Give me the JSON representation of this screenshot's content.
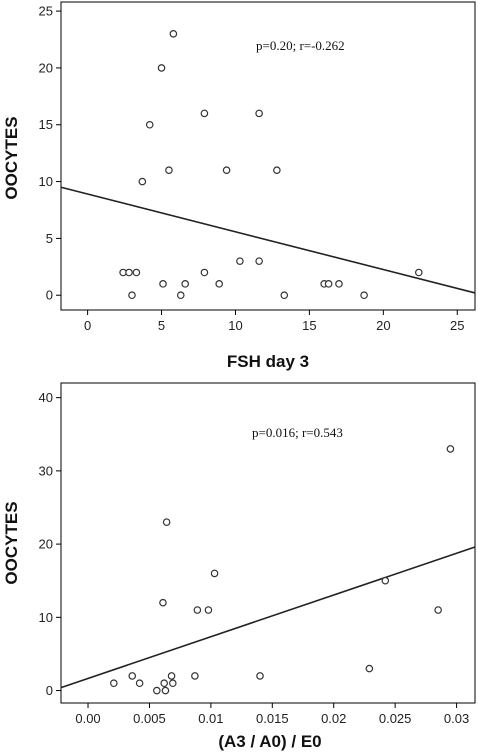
{
  "chart_data": [
    {
      "type": "scatter",
      "title": "",
      "xlabel": "FSH day 3",
      "ylabel": "OOCYTES",
      "annotation": "p=0.20; r=-0.262",
      "xlim": [
        -1.8,
        26.2
      ],
      "ylim": [
        -1.3,
        25.8
      ],
      "xticks": [
        0,
        5,
        10,
        15,
        20,
        25
      ],
      "xtick_labels": [
        "0",
        "5",
        "10",
        "15",
        "20",
        "25"
      ],
      "yticks": [
        0,
        5,
        10,
        15,
        20,
        25
      ],
      "ytick_labels": [
        "0",
        "5",
        "10",
        "15",
        "20",
        "25"
      ],
      "grid": false,
      "points": [
        {
          "x": 5.8,
          "y": 23
        },
        {
          "x": 5.0,
          "y": 20
        },
        {
          "x": 4.2,
          "y": 15
        },
        {
          "x": 7.9,
          "y": 16
        },
        {
          "x": 11.6,
          "y": 16
        },
        {
          "x": 3.7,
          "y": 10
        },
        {
          "x": 5.5,
          "y": 11
        },
        {
          "x": 9.4,
          "y": 11
        },
        {
          "x": 12.8,
          "y": 11
        },
        {
          "x": 2.4,
          "y": 2
        },
        {
          "x": 2.8,
          "y": 2
        },
        {
          "x": 3.3,
          "y": 2
        },
        {
          "x": 3.0,
          "y": 0
        },
        {
          "x": 5.1,
          "y": 1
        },
        {
          "x": 6.3,
          "y": 0
        },
        {
          "x": 6.6,
          "y": 1
        },
        {
          "x": 7.9,
          "y": 2
        },
        {
          "x": 8.9,
          "y": 1
        },
        {
          "x": 10.3,
          "y": 3
        },
        {
          "x": 11.6,
          "y": 3
        },
        {
          "x": 13.3,
          "y": 0
        },
        {
          "x": 16.0,
          "y": 1
        },
        {
          "x": 16.3,
          "y": 1
        },
        {
          "x": 17.0,
          "y": 1
        },
        {
          "x": 18.7,
          "y": 0
        },
        {
          "x": 22.4,
          "y": 2
        }
      ],
      "fit_line": {
        "x": [
          -1.8,
          26.2
        ],
        "y": [
          9.5,
          0.2
        ]
      }
    },
    {
      "type": "scatter",
      "title": "",
      "xlabel": "(A3 / A0) / E0",
      "ylabel": "OOCYTES",
      "annotation": "p=0.016; r=0.543",
      "xlim": [
        -0.0022,
        0.0315
      ],
      "ylim": [
        -1.7,
        42
      ],
      "xticks": [
        0,
        0.005,
        0.01,
        0.015,
        0.02,
        0.025,
        0.03
      ],
      "xtick_labels": [
        "0.00",
        "0.005",
        "0.01",
        "0.015",
        "0.02",
        "0.025",
        "0.03"
      ],
      "yticks": [
        0,
        10,
        20,
        30,
        40
      ],
      "ytick_labels": [
        "0",
        "10",
        "20",
        "30",
        "40"
      ],
      "grid": false,
      "points": [
        {
          "x": 0.0021,
          "y": 1
        },
        {
          "x": 0.0036,
          "y": 2
        },
        {
          "x": 0.0042,
          "y": 1
        },
        {
          "x": 0.0056,
          "y": 0
        },
        {
          "x": 0.0061,
          "y": 12
        },
        {
          "x": 0.0062,
          "y": 1
        },
        {
          "x": 0.0063,
          "y": 0
        },
        {
          "x": 0.0064,
          "y": 23
        },
        {
          "x": 0.0068,
          "y": 2
        },
        {
          "x": 0.0069,
          "y": 1
        },
        {
          "x": 0.0087,
          "y": 2
        },
        {
          "x": 0.0089,
          "y": 11
        },
        {
          "x": 0.0098,
          "y": 11
        },
        {
          "x": 0.0103,
          "y": 16
        },
        {
          "x": 0.014,
          "y": 2
        },
        {
          "x": 0.0229,
          "y": 3
        },
        {
          "x": 0.0242,
          "y": 15
        },
        {
          "x": 0.0285,
          "y": 11
        },
        {
          "x": 0.0295,
          "y": 33
        }
      ],
      "fit_line": {
        "x": [
          -0.0022,
          0.0315
        ],
        "y": [
          0.4,
          19.6
        ]
      }
    }
  ]
}
